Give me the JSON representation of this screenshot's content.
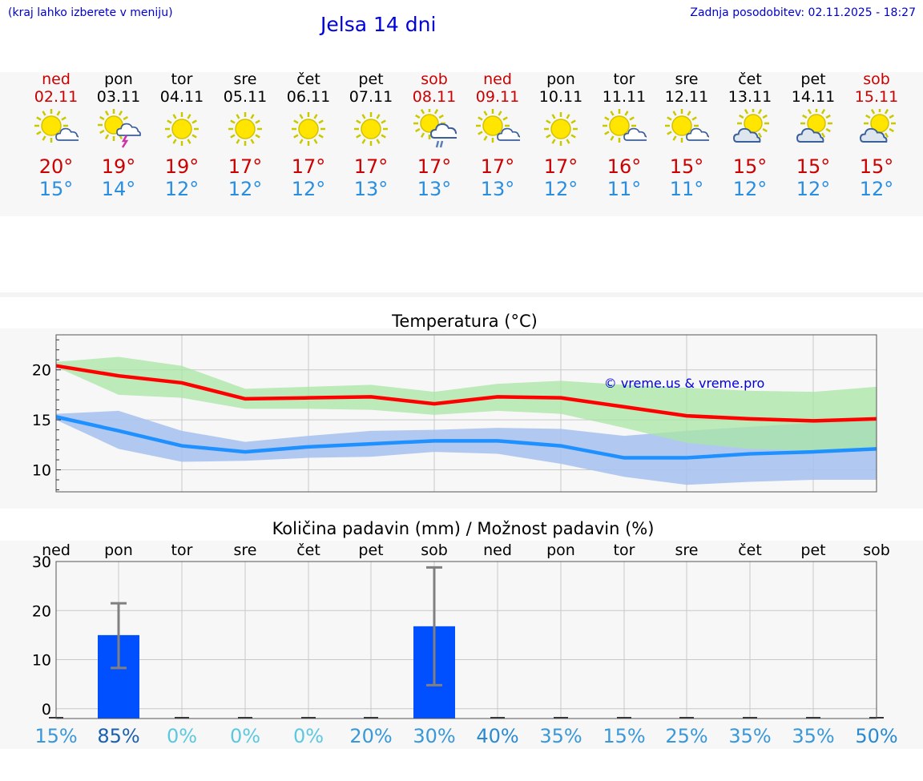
{
  "header": {
    "menu_hint": "(kraj lahko izberete v meniju)",
    "title": "Jelsa 14 dni",
    "updated": "Zadnja posodobitev: 02.11.2025 - 18:27"
  },
  "colors": {
    "weekend": "#cc0000",
    "max_line": "#ff0000",
    "min_line": "#1e90ff",
    "max_band": "#a8e6a3",
    "min_band": "#a8c3f0",
    "bar": "#0050ff",
    "link": "#0000dd"
  },
  "days": [
    {
      "name": "ned",
      "date": "02.11",
      "weekend": true,
      "icon": "sun-cloud-icon",
      "max": "20°",
      "min": "15°",
      "precip_chance": "15%"
    },
    {
      "name": "pon",
      "date": "03.11",
      "weekend": false,
      "icon": "sun-cloud-thunder-icon",
      "max": "19°",
      "min": "14°",
      "precip_chance": "85%"
    },
    {
      "name": "tor",
      "date": "04.11",
      "weekend": false,
      "icon": "sun-icon",
      "max": "19°",
      "min": "12°",
      "precip_chance": "0%"
    },
    {
      "name": "sre",
      "date": "05.11",
      "weekend": false,
      "icon": "sun-icon",
      "max": "17°",
      "min": "12°",
      "precip_chance": "0%"
    },
    {
      "name": "čet",
      "date": "06.11",
      "weekend": false,
      "icon": "sun-icon",
      "max": "17°",
      "min": "12°",
      "precip_chance": "0%"
    },
    {
      "name": "pet",
      "date": "07.11",
      "weekend": false,
      "icon": "sun-icon",
      "max": "17°",
      "min": "13°",
      "precip_chance": "20%"
    },
    {
      "name": "sob",
      "date": "08.11",
      "weekend": true,
      "icon": "sun-cloud-rain-icon",
      "max": "17°",
      "min": "13°",
      "precip_chance": "30%"
    },
    {
      "name": "ned",
      "date": "09.11",
      "weekend": true,
      "icon": "sun-cloud-icon",
      "max": "17°",
      "min": "13°",
      "precip_chance": "40%"
    },
    {
      "name": "pon",
      "date": "10.11",
      "weekend": false,
      "icon": "sun-icon",
      "max": "17°",
      "min": "12°",
      "precip_chance": "35%"
    },
    {
      "name": "tor",
      "date": "11.11",
      "weekend": false,
      "icon": "sun-cloud-icon",
      "max": "16°",
      "min": "11°",
      "precip_chance": "15%"
    },
    {
      "name": "sre",
      "date": "12.11",
      "weekend": false,
      "icon": "sun-cloud-icon",
      "max": "15°",
      "min": "11°",
      "precip_chance": "25%"
    },
    {
      "name": "čet",
      "date": "13.11",
      "weekend": false,
      "icon": "cloud-sun-icon",
      "max": "15°",
      "min": "12°",
      "precip_chance": "35%"
    },
    {
      "name": "pet",
      "date": "14.11",
      "weekend": false,
      "icon": "cloud-sun-icon",
      "max": "15°",
      "min": "12°",
      "precip_chance": "35%"
    },
    {
      "name": "sob",
      "date": "15.11",
      "weekend": true,
      "icon": "cloud-sun-icon",
      "max": "15°",
      "min": "12°",
      "precip_chance": "50%"
    }
  ],
  "chart_data": [
    {
      "type": "line",
      "title": "Temperatura (°C)",
      "watermark": "© vreme.us & vreme.pro",
      "x": [
        0,
        1,
        2,
        3,
        4,
        5,
        6,
        7,
        8,
        9,
        10,
        11,
        12,
        13
      ],
      "ylim": [
        7.8,
        23.5
      ],
      "yticks": [
        10,
        15,
        20
      ],
      "series": [
        {
          "name": "max",
          "values": [
            20.4,
            19.4,
            18.7,
            17.1,
            17.2,
            17.3,
            16.6,
            17.3,
            17.2,
            16.3,
            15.4,
            15.1,
            14.9,
            15.1
          ],
          "band_low": [
            20.3,
            17.5,
            17.2,
            16.1,
            16.1,
            16.0,
            15.5,
            15.9,
            15.6,
            14.2,
            12.7,
            12.1,
            11.9,
            11.9
          ],
          "band_high": [
            20.8,
            21.3,
            20.4,
            18.1,
            18.3,
            18.5,
            17.8,
            18.6,
            18.9,
            18.5,
            18.2,
            17.9,
            17.8,
            18.3
          ]
        },
        {
          "name": "min",
          "values": [
            15.3,
            13.9,
            12.4,
            11.8,
            12.3,
            12.6,
            12.9,
            12.9,
            12.4,
            11.2,
            11.2,
            11.6,
            11.8,
            12.1
          ],
          "band_low": [
            15.0,
            12.1,
            10.8,
            10.9,
            11.2,
            11.3,
            11.8,
            11.6,
            10.6,
            9.3,
            8.5,
            8.8,
            9.0,
            9.0
          ],
          "band_high": [
            15.6,
            15.9,
            13.9,
            12.8,
            13.4,
            13.9,
            14.0,
            14.2,
            14.1,
            13.4,
            13.9,
            14.3,
            14.7,
            15.0
          ]
        }
      ]
    },
    {
      "type": "bar",
      "title": "Količina padavin (mm) / Možnost padavin (%)",
      "categories": [
        "ned",
        "pon",
        "tor",
        "sre",
        "čet",
        "pet",
        "sob",
        "ned",
        "pon",
        "tor",
        "sre",
        "čet",
        "pet",
        "sob"
      ],
      "ylim": [
        -2,
        30
      ],
      "yticks": [
        0,
        10,
        20,
        30
      ],
      "values": [
        0,
        15,
        0,
        0,
        0,
        0,
        16.8,
        0,
        0,
        0,
        0,
        0,
        0,
        0
      ],
      "error_low": [
        null,
        8.3,
        null,
        null,
        null,
        null,
        4.8,
        null,
        null,
        null,
        null,
        null,
        null,
        null
      ],
      "error_high": [
        null,
        21.5,
        null,
        null,
        null,
        null,
        28.8,
        null,
        null,
        null,
        null,
        null,
        null,
        null
      ],
      "precip_chance": [
        "15%",
        "85%",
        "0%",
        "0%",
        "0%",
        "20%",
        "30%",
        "40%",
        "35%",
        "15%",
        "25%",
        "35%",
        "35%",
        "50%"
      ]
    }
  ]
}
